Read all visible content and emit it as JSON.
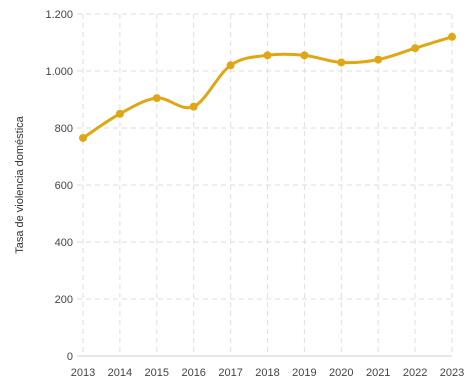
{
  "chart_data": {
    "type": "line",
    "title": "",
    "xlabel": "",
    "ylabel": "Tasa de violencia doméstica",
    "x": [
      "2013",
      "2014",
      "2015",
      "2016",
      "2017",
      "2018",
      "2019",
      "2020",
      "2021",
      "2022",
      "2023"
    ],
    "series": [
      {
        "values": [
          765,
          850,
          905,
          875,
          1020,
          1055,
          1055,
          1030,
          1040,
          1080,
          1120
        ]
      }
    ],
    "ylim": [
      0,
      1200
    ],
    "yticks": [
      0,
      200,
      400,
      600,
      800,
      1000,
      1200
    ],
    "ytick_labels": [
      "0",
      "200",
      "400",
      "600",
      "800",
      "1.000",
      "1.200"
    ],
    "grid": true,
    "line_color": "#e0a614",
    "smooth": true
  }
}
